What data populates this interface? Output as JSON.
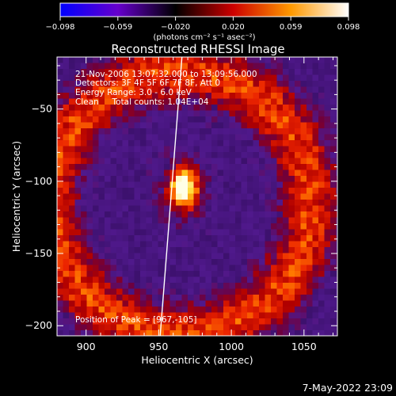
{
  "chart_data": {
    "type": "heatmap",
    "title": "Reconstructed RHESSI Image",
    "xlabel": "Heliocentric X (arcsec)",
    "ylabel": "Heliocentric Y (arcsec)",
    "xlim": [
      880,
      1073
    ],
    "ylim": [
      -207,
      -14
    ],
    "x_ticks": [
      900,
      950,
      1000,
      1050
    ],
    "y_ticks": [
      -50,
      -100,
      -150,
      -200
    ],
    "colorbar": {
      "min": -0.098,
      "max": 0.098,
      "ticks": [
        "−0.098",
        "−0.059",
        "−0.020",
        "0.020",
        "0.059",
        "0.098"
      ],
      "unit_label": "(photons cm⁻² s⁻¹ asec⁻²)",
      "colormap": [
        "#0000ff",
        "#6600cc",
        "#000000",
        "#cc0000",
        "#ff9900",
        "#ffffff"
      ]
    },
    "annotations": [
      "21-Nov-2006 13:07:32.000 to 13:09:56.000",
      "Detectors: 3F 4F 5F 6F 7F 8F, Att 0",
      "Energy Range: 3.0 - 6.0 keV",
      "Clean     Total counts: 1.04E+04"
    ],
    "peak_label": "Position of Peak = [967,-105]",
    "peak": [
      967,
      -105
    ],
    "limb_line": [
      [
        966,
        -14
      ],
      [
        951,
        -207
      ]
    ],
    "source_rings": [
      {
        "cx": 967,
        "cy": -105,
        "r": 0,
        "w": 10,
        "value": 0.098
      },
      {
        "cx": 965,
        "cy": -115,
        "r": 90,
        "w": 22,
        "value": 0.05
      }
    ]
  },
  "footer": {
    "timestamp": "7-May-2022 23:09"
  }
}
